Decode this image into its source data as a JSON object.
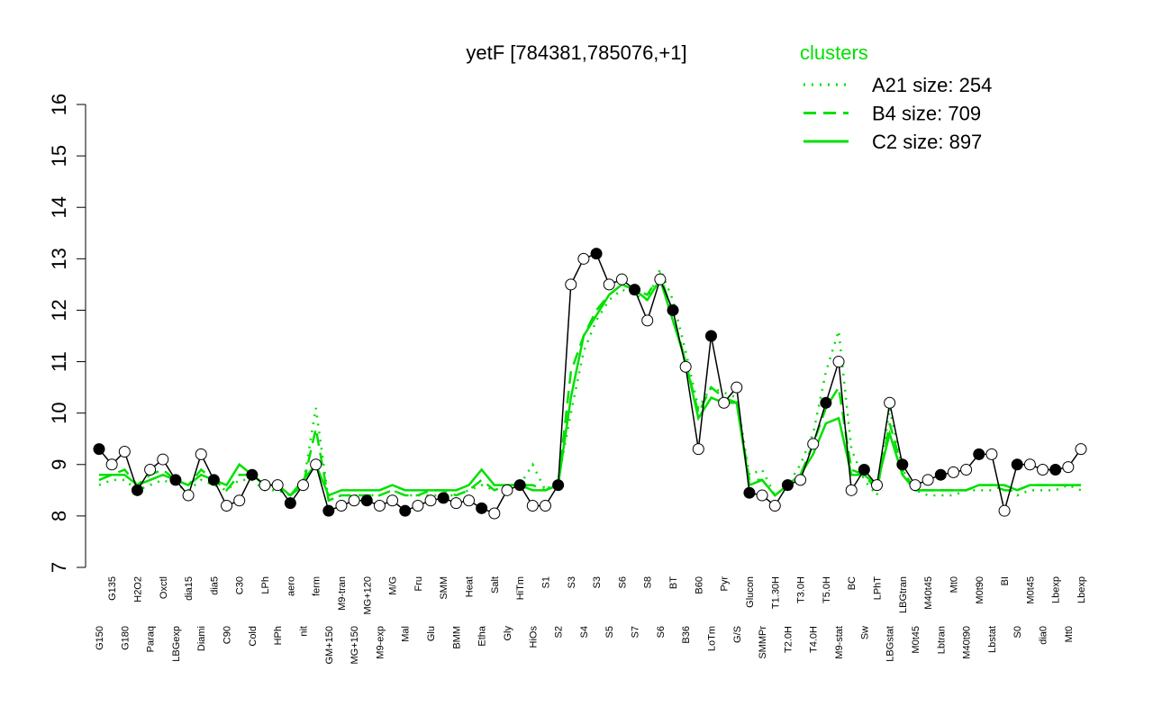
{
  "chart_data": {
    "type": "line",
    "title": "yetF [784381,785076,+1]",
    "legend_title": "clusters",
    "ylim": [
      7,
      16
    ],
    "yticks": [
      7,
      8,
      9,
      10,
      11,
      12,
      13,
      14,
      15,
      16
    ],
    "categories": [
      "G150",
      "G135",
      "G180",
      "H2O2",
      "Paraq",
      "Oxctl",
      "LBGexp",
      "dia15",
      "Diami",
      "dia5",
      "C90",
      "C30",
      "Cold",
      "LPh",
      "HPh",
      "aero",
      "nit",
      "ferm",
      "GM+150",
      "M9-tran",
      "MG+150",
      "MG+120",
      "M9-exp",
      "M/G",
      "Mal",
      "Fru",
      "Glu",
      "SMM",
      "BMM",
      "Heat",
      "Etha",
      "Salt",
      "Gly",
      "HiTm",
      "HiOs",
      "S1",
      "S2",
      "S3",
      "S4",
      "S3",
      "S5",
      "S6",
      "S7",
      "S8",
      "S6",
      "BT",
      "B36",
      "B60",
      "LoTm",
      "Pyr",
      "G/S",
      "Glucon",
      "SMMPr",
      "T1.30H",
      "T2.0H",
      "T3.0H",
      "T4.0H",
      "T5.0H",
      "M9-stat",
      "BC",
      "Sw",
      "LPhT",
      "LBGstat",
      "LBGtran",
      "M0t45",
      "M40t45",
      "Lbtran",
      "Mt0",
      "M40t90",
      "M0t90",
      "Lbstat",
      "BI",
      "S0",
      "M0t45",
      "dia0",
      "Lbexp",
      "Mt0",
      "Lbexp"
    ],
    "series": [
      {
        "name": "A21 size: 254",
        "color": "#00e000",
        "style": "dotted",
        "values": [
          8.6,
          8.7,
          8.7,
          8.5,
          8.6,
          8.7,
          8.6,
          8.5,
          8.7,
          8.6,
          8.5,
          8.7,
          8.7,
          8.5,
          8.5,
          8.4,
          8.6,
          10.1,
          8.3,
          8.4,
          8.4,
          8.4,
          8.4,
          8.5,
          8.4,
          8.4,
          8.4,
          8.4,
          8.4,
          8.5,
          8.6,
          8.5,
          8.6,
          8.6,
          9.0,
          8.5,
          8.7,
          10.0,
          11.2,
          11.8,
          12.2,
          12.4,
          12.3,
          12.2,
          12.8,
          12.2,
          11.2,
          10.1,
          10.5,
          10.4,
          10.3,
          8.8,
          8.9,
          8.4,
          8.6,
          9.0,
          9.6,
          10.8,
          11.6,
          9.3,
          8.7,
          8.4,
          10.1,
          8.9,
          8.5,
          8.4,
          8.4,
          8.4,
          8.5,
          8.5,
          8.5,
          8.6,
          8.4,
          8.5,
          8.5,
          8.5,
          8.6,
          8.5
        ]
      },
      {
        "name": "B4 size: 709",
        "color": "#00e000",
        "style": "dashed",
        "values": [
          8.8,
          8.8,
          8.9,
          8.6,
          8.8,
          8.9,
          8.7,
          8.6,
          8.9,
          8.7,
          8.5,
          8.8,
          8.8,
          8.6,
          8.6,
          8.4,
          8.6,
          9.7,
          8.3,
          8.4,
          8.4,
          8.4,
          8.4,
          8.5,
          8.4,
          8.4,
          8.5,
          8.5,
          8.4,
          8.5,
          8.7,
          8.5,
          8.6,
          8.6,
          8.6,
          8.5,
          8.6,
          10.8,
          11.5,
          12.0,
          12.3,
          12.5,
          12.4,
          12.3,
          12.7,
          11.9,
          11.0,
          10.0,
          10.5,
          10.3,
          10.2,
          8.7,
          8.7,
          8.4,
          8.6,
          8.8,
          9.4,
          10.1,
          10.5,
          8.9,
          8.8,
          8.5,
          9.8,
          8.9,
          8.5,
          8.5,
          8.5,
          8.5,
          8.5,
          8.6,
          8.6,
          8.5,
          8.5,
          8.6,
          8.6,
          8.6,
          8.6,
          8.6
        ]
      },
      {
        "name": "C2 size: 897",
        "color": "#00e000",
        "style": "solid",
        "values": [
          8.7,
          8.8,
          8.8,
          8.6,
          8.7,
          8.8,
          8.7,
          8.6,
          8.8,
          8.7,
          8.6,
          9.0,
          8.8,
          8.6,
          8.6,
          8.4,
          8.7,
          9.0,
          8.4,
          8.5,
          8.5,
          8.5,
          8.5,
          8.6,
          8.5,
          8.5,
          8.5,
          8.5,
          8.5,
          8.6,
          8.9,
          8.6,
          8.6,
          8.6,
          8.5,
          8.5,
          8.6,
          10.3,
          11.5,
          11.9,
          12.3,
          12.5,
          12.4,
          12.2,
          12.6,
          11.8,
          11.0,
          9.9,
          10.3,
          10.2,
          10.2,
          8.6,
          8.7,
          8.4,
          8.6,
          8.8,
          9.2,
          9.8,
          9.9,
          8.8,
          8.8,
          8.6,
          9.6,
          8.8,
          8.5,
          8.5,
          8.5,
          8.5,
          8.5,
          8.6,
          8.6,
          8.6,
          8.5,
          8.6,
          8.6,
          8.6,
          8.6,
          8.6
        ]
      }
    ],
    "values": [
      9.3,
      9.0,
      9.25,
      8.5,
      8.9,
      9.1,
      8.7,
      8.4,
      9.2,
      8.7,
      8.2,
      8.3,
      8.8,
      8.6,
      8.6,
      8.25,
      8.6,
      9.0,
      8.1,
      8.2,
      8.3,
      8.3,
      8.2,
      8.3,
      8.1,
      8.2,
      8.3,
      8.35,
      8.25,
      8.3,
      8.15,
      8.05,
      8.5,
      8.6,
      8.2,
      8.2,
      8.6,
      12.5,
      13.0,
      13.1,
      12.5,
      12.6,
      12.4,
      11.8,
      12.6,
      12.0,
      10.9,
      9.3,
      11.5,
      10.2,
      10.5,
      8.45,
      8.4,
      8.2,
      8.6,
      8.7,
      9.4,
      10.2,
      11.0,
      8.5,
      8.9,
      8.6,
      10.2,
      9.0,
      8.6,
      8.7,
      8.8,
      8.85,
      8.9,
      9.2,
      9.2,
      8.1,
      9.0,
      9.0,
      8.9,
      8.9,
      8.95,
      9.3
    ],
    "color": "#000000"
  }
}
